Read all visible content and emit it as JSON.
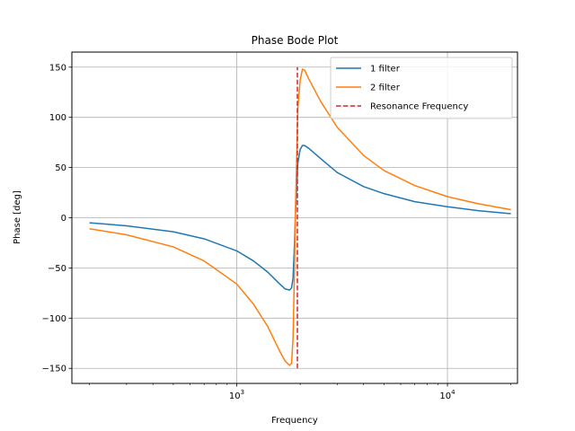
{
  "chart_data": {
    "type": "line",
    "title": "Phase Bode Plot",
    "xlabel": "Frequency",
    "ylabel": "Phase [deg]",
    "xscale": "log",
    "xlim": [
      165,
      21500
    ],
    "ylim": [
      -165,
      165
    ],
    "grid": true,
    "legend_position": "top-right",
    "x_tick_labels": [
      {
        "base": "10",
        "exp": "3",
        "value": 1000
      },
      {
        "base": "10",
        "exp": "4",
        "value": 10000
      }
    ],
    "y_ticks": [
      150,
      100,
      50,
      0,
      -50,
      -100,
      -150
    ],
    "y_tick_labels": [
      "150",
      "100",
      "50",
      "0",
      "−50",
      "−100",
      "−150"
    ],
    "series": [
      {
        "name": "1 filter",
        "color": "#1f77b4",
        "style": "solid",
        "x": [
          200,
          300,
          500,
          700,
          1000,
          1200,
          1400,
          1600,
          1700,
          1780,
          1820,
          1850,
          1880,
          1900,
          1930,
          1950,
          2000,
          2050,
          2100,
          2200,
          2500,
          3000,
          4000,
          5000,
          7000,
          10000,
          14000,
          20000
        ],
        "y": [
          -5,
          -8,
          -14,
          -21,
          -33,
          -43,
          -54,
          -66,
          -71,
          -72,
          -70,
          -60,
          -25,
          5,
          35,
          55,
          68,
          72,
          72,
          69,
          59,
          45,
          31,
          24,
          16,
          11,
          7,
          4
        ]
      },
      {
        "name": "2 filter",
        "color": "#ff7f0e",
        "style": "solid",
        "x": [
          200,
          300,
          500,
          700,
          1000,
          1200,
          1400,
          1600,
          1700,
          1780,
          1820,
          1850,
          1880,
          1900,
          1930,
          1950,
          2000,
          2050,
          2100,
          2200,
          2500,
          3000,
          4000,
          5000,
          7000,
          10000,
          14000,
          20000
        ],
        "y": [
          -11,
          -17,
          -29,
          -43,
          -66,
          -86,
          -108,
          -133,
          -143,
          -147,
          -145,
          -120,
          -50,
          10,
          70,
          110,
          137,
          148,
          147,
          138,
          116,
          90,
          62,
          47,
          32,
          21,
          14,
          8
        ]
      },
      {
        "name": "Resonance Frequency",
        "color": "#d62728",
        "style": "dashed",
        "x": [
          1940,
          1940
        ],
        "y": [
          -150,
          150
        ]
      }
    ]
  }
}
